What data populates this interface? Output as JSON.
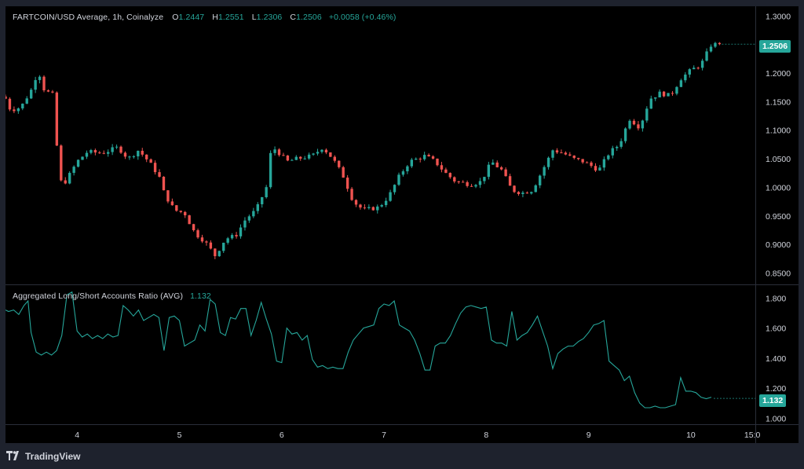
{
  "colors": {
    "background": "#000000",
    "outer": "#1e222d",
    "up": "#26a69a",
    "down": "#ef5350",
    "ratio_line": "#26a69a",
    "text": "#d1d4dc"
  },
  "header": {
    "symbol": "FARTCOIN/USD Average, 1h, Coinalyze",
    "o_label": "O",
    "o_value": "1.2447",
    "h_label": "H",
    "h_value": "1.2551",
    "l_label": "L",
    "l_value": "1.2306",
    "c_label": "C",
    "c_value": "1.2506",
    "change": "+0.0058 (+0.46%)"
  },
  "indicator": {
    "label": "Aggregated Long/Short Accounts Ratio (AVG)",
    "value": "1.132"
  },
  "footer": {
    "brand": "TradingView",
    "logo_icon": "tradingview-logo-icon"
  },
  "chart_data": [
    {
      "type": "candlestick",
      "title": "FARTCOIN/USD Average, 1h, Coinalyze",
      "x_ticks": [
        "4",
        "5",
        "6",
        "7",
        "8",
        "9",
        "10",
        "15:0"
      ],
      "x_tick_positions": [
        4,
        5,
        6,
        7,
        8,
        9,
        10,
        10.6
      ],
      "x_range": [
        3.3,
        10.63
      ],
      "y_ticks": [
        "1.3000",
        "1.2500",
        "1.2000",
        "1.1500",
        "1.1000",
        "1.0500",
        "1.0000",
        "0.9500",
        "0.9000",
        "0.8500"
      ],
      "ylim": [
        0.83,
        1.31
      ],
      "last_price": "1.2506",
      "close_path": [
        [
          3.3,
          1.155
        ],
        [
          3.35,
          1.135
        ],
        [
          3.45,
          1.14
        ],
        [
          3.55,
          1.17
        ],
        [
          3.62,
          1.205
        ],
        [
          3.68,
          1.17
        ],
        [
          3.78,
          1.16
        ],
        [
          3.8,
          1.075
        ],
        [
          3.85,
          1.0
        ],
        [
          3.92,
          1.02
        ],
        [
          4.0,
          1.045
        ],
        [
          4.1,
          1.062
        ],
        [
          4.25,
          1.06
        ],
        [
          4.4,
          1.07
        ],
        [
          4.5,
          1.05
        ],
        [
          4.6,
          1.065
        ],
        [
          4.7,
          1.045
        ],
        [
          4.8,
          1.02
        ],
        [
          4.85,
          0.99
        ],
        [
          4.95,
          0.96
        ],
        [
          5.05,
          0.955
        ],
        [
          5.15,
          0.92
        ],
        [
          5.25,
          0.905
        ],
        [
          5.35,
          0.88
        ],
        [
          5.45,
          0.91
        ],
        [
          5.55,
          0.915
        ],
        [
          5.65,
          0.945
        ],
        [
          5.75,
          0.96
        ],
        [
          5.85,
          1.0
        ],
        [
          5.9,
          1.07
        ],
        [
          5.95,
          1.065
        ],
        [
          6.05,
          1.045
        ],
        [
          6.15,
          1.05
        ],
        [
          6.3,
          1.055
        ],
        [
          6.4,
          1.07
        ],
        [
          6.5,
          1.05
        ],
        [
          6.6,
          1.02
        ],
        [
          6.7,
          0.975
        ],
        [
          6.8,
          0.96
        ],
        [
          6.95,
          0.965
        ],
        [
          7.05,
          0.985
        ],
        [
          7.15,
          1.02
        ],
        [
          7.25,
          1.045
        ],
        [
          7.4,
          1.055
        ],
        [
          7.5,
          1.045
        ],
        [
          7.6,
          1.025
        ],
        [
          7.7,
          1.01
        ],
        [
          7.85,
          1.005
        ],
        [
          7.95,
          1.01
        ],
        [
          8.05,
          1.045
        ],
        [
          8.15,
          1.03
        ],
        [
          8.25,
          0.995
        ],
        [
          8.35,
          0.99
        ],
        [
          8.45,
          0.995
        ],
        [
          8.55,
          1.03
        ],
        [
          8.65,
          1.065
        ],
        [
          8.75,
          1.06
        ],
        [
          8.85,
          1.05
        ],
        [
          8.95,
          1.045
        ],
        [
          9.1,
          1.03
        ],
        [
          9.2,
          1.06
        ],
        [
          9.3,
          1.075
        ],
        [
          9.4,
          1.12
        ],
        [
          9.5,
          1.105
        ],
        [
          9.6,
          1.155
        ],
        [
          9.7,
          1.165
        ],
        [
          9.8,
          1.16
        ],
        [
          9.9,
          1.19
        ],
        [
          10.0,
          1.205
        ],
        [
          10.1,
          1.215
        ],
        [
          10.2,
          1.25
        ],
        [
          10.28,
          1.2506
        ]
      ]
    },
    {
      "type": "line",
      "title": "Aggregated Long/Short Accounts Ratio (AVG)",
      "y_ticks": [
        "1.800",
        "1.600",
        "1.400",
        "1.200",
        "1.000"
      ],
      "ylim": [
        0.96,
        1.88
      ],
      "last_value": "1.132",
      "series": [
        {
          "values": [
            [
              3.3,
              1.72
            ],
            [
              3.33,
              1.71
            ],
            [
              3.38,
              1.72
            ],
            [
              3.43,
              1.69
            ],
            [
              3.48,
              1.75
            ],
            [
              3.52,
              1.78
            ],
            [
              3.55,
              1.57
            ],
            [
              3.6,
              1.44
            ],
            [
              3.65,
              1.42
            ],
            [
              3.7,
              1.44
            ],
            [
              3.75,
              1.42
            ],
            [
              3.8,
              1.45
            ],
            [
              3.85,
              1.55
            ],
            [
              3.9,
              1.82
            ],
            [
              3.95,
              1.84
            ],
            [
              4.0,
              1.58
            ],
            [
              4.05,
              1.54
            ],
            [
              4.1,
              1.56
            ],
            [
              4.15,
              1.53
            ],
            [
              4.2,
              1.55
            ],
            [
              4.25,
              1.53
            ],
            [
              4.3,
              1.56
            ],
            [
              4.35,
              1.54
            ],
            [
              4.4,
              1.55
            ],
            [
              4.45,
              1.75
            ],
            [
              4.5,
              1.72
            ],
            [
              4.55,
              1.68
            ],
            [
              4.6,
              1.72
            ],
            [
              4.65,
              1.65
            ],
            [
              4.7,
              1.67
            ],
            [
              4.75,
              1.69
            ],
            [
              4.8,
              1.67
            ],
            [
              4.85,
              1.45
            ],
            [
              4.9,
              1.67
            ],
            [
              4.95,
              1.68
            ],
            [
              5.0,
              1.65
            ],
            [
              5.05,
              1.48
            ],
            [
              5.1,
              1.5
            ],
            [
              5.15,
              1.52
            ],
            [
              5.2,
              1.62
            ],
            [
              5.25,
              1.58
            ],
            [
              5.3,
              1.79
            ],
            [
              5.35,
              1.76
            ],
            [
              5.4,
              1.57
            ],
            [
              5.45,
              1.55
            ],
            [
              5.5,
              1.67
            ],
            [
              5.55,
              1.66
            ],
            [
              5.6,
              1.73
            ],
            [
              5.65,
              1.73
            ],
            [
              5.7,
              1.55
            ],
            [
              5.75,
              1.65
            ],
            [
              5.8,
              1.77
            ],
            [
              5.85,
              1.66
            ],
            [
              5.9,
              1.56
            ],
            [
              5.95,
              1.38
            ],
            [
              6.0,
              1.37
            ],
            [
              6.05,
              1.6
            ],
            [
              6.1,
              1.56
            ],
            [
              6.15,
              1.57
            ],
            [
              6.2,
              1.52
            ],
            [
              6.25,
              1.55
            ],
            [
              6.3,
              1.39
            ],
            [
              6.35,
              1.34
            ],
            [
              6.4,
              1.35
            ],
            [
              6.45,
              1.33
            ],
            [
              6.5,
              1.34
            ],
            [
              6.55,
              1.33
            ],
            [
              6.6,
              1.33
            ],
            [
              6.65,
              1.44
            ],
            [
              6.7,
              1.52
            ],
            [
              6.75,
              1.56
            ],
            [
              6.8,
              1.6
            ],
            [
              6.85,
              1.61
            ],
            [
              6.9,
              1.62
            ],
            [
              6.95,
              1.73
            ],
            [
              7.0,
              1.76
            ],
            [
              7.05,
              1.75
            ],
            [
              7.1,
              1.78
            ],
            [
              7.15,
              1.62
            ],
            [
              7.2,
              1.6
            ],
            [
              7.25,
              1.58
            ],
            [
              7.3,
              1.52
            ],
            [
              7.35,
              1.43
            ],
            [
              7.4,
              1.32
            ],
            [
              7.45,
              1.32
            ],
            [
              7.5,
              1.48
            ],
            [
              7.55,
              1.5
            ],
            [
              7.6,
              1.5
            ],
            [
              7.65,
              1.55
            ],
            [
              7.7,
              1.63
            ],
            [
              7.75,
              1.7
            ],
            [
              7.8,
              1.74
            ],
            [
              7.85,
              1.75
            ],
            [
              7.9,
              1.74
            ],
            [
              7.95,
              1.73
            ],
            [
              8.0,
              1.74
            ],
            [
              8.05,
              1.52
            ],
            [
              8.1,
              1.5
            ],
            [
              8.15,
              1.5
            ],
            [
              8.2,
              1.48
            ],
            [
              8.25,
              1.71
            ],
            [
              8.3,
              1.52
            ],
            [
              8.35,
              1.55
            ],
            [
              8.4,
              1.57
            ],
            [
              8.45,
              1.62
            ],
            [
              8.5,
              1.68
            ],
            [
              8.55,
              1.58
            ],
            [
              8.6,
              1.48
            ],
            [
              8.65,
              1.33
            ],
            [
              8.7,
              1.43
            ],
            [
              8.75,
              1.46
            ],
            [
              8.8,
              1.48
            ],
            [
              8.85,
              1.48
            ],
            [
              8.9,
              1.51
            ],
            [
              8.95,
              1.53
            ],
            [
              9.0,
              1.57
            ],
            [
              9.05,
              1.62
            ],
            [
              9.1,
              1.63
            ],
            [
              9.15,
              1.65
            ],
            [
              9.2,
              1.38
            ],
            [
              9.25,
              1.35
            ],
            [
              9.3,
              1.32
            ],
            [
              9.35,
              1.25
            ],
            [
              9.4,
              1.28
            ],
            [
              9.45,
              1.17
            ],
            [
              9.5,
              1.1
            ],
            [
              9.55,
              1.07
            ],
            [
              9.6,
              1.07
            ],
            [
              9.65,
              1.08
            ],
            [
              9.7,
              1.07
            ],
            [
              9.75,
              1.07
            ],
            [
              9.8,
              1.08
            ],
            [
              9.85,
              1.09
            ],
            [
              9.9,
              1.27
            ],
            [
              9.95,
              1.18
            ],
            [
              10.0,
              1.18
            ],
            [
              10.05,
              1.17
            ],
            [
              10.1,
              1.14
            ],
            [
              10.15,
              1.13
            ],
            [
              10.2,
              1.14
            ]
          ]
        }
      ]
    }
  ]
}
